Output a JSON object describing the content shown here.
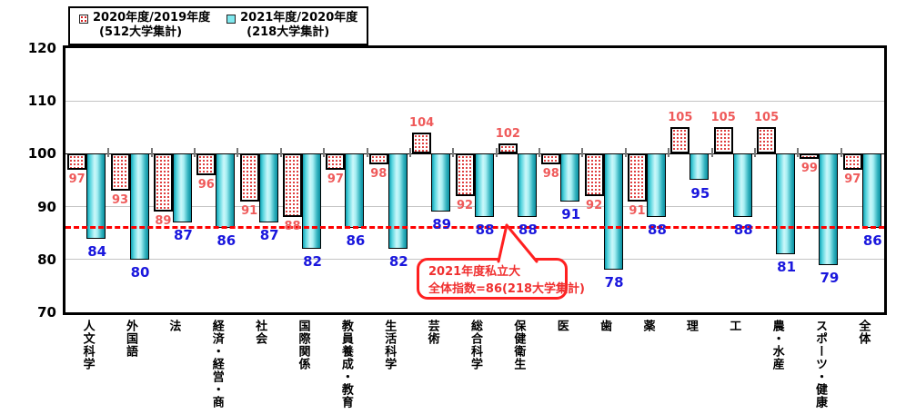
{
  "legend": {
    "series1_line1": "2020年度/2019年度",
    "series1_line2": "(512大学集計)",
    "series2_line1": "2021年度/2020年度",
    "series2_line2": "(218大学集計)"
  },
  "annotation": {
    "line1": "2021年度私立大",
    "line2": "全体指数=86(218大学集計)"
  },
  "colors": {
    "reference_line": "#ff0000",
    "series1_label": "#ef5a5a",
    "series2_label": "#1a17dd",
    "series1_fill": "white with red dot pattern",
    "series2_fill": "cyan gradient cylinder",
    "annotation": "#f03030",
    "grid": "#c4c4c4"
  },
  "chart_data": {
    "type": "bar",
    "title": "",
    "xlabel": "",
    "ylabel": "",
    "ylim": [
      70,
      120
    ],
    "yticks": [
      120,
      110,
      100,
      90,
      80,
      70
    ],
    "baseline": 100,
    "grid": true,
    "legend_position": "top-left",
    "reference_line": {
      "value": 86,
      "style": "dashed",
      "color": "#ff0000"
    },
    "categories": [
      "人文科学",
      "外国語",
      "法",
      "経済・経営・商",
      "社会",
      "国際関係",
      "教員養成・教育",
      "生活科学",
      "芸術",
      "総合科学",
      "保健衛生",
      "医",
      "歯",
      "薬",
      "理",
      "工",
      "農・水産",
      "スポーツ・健康",
      "全体"
    ],
    "series": [
      {
        "name": "2020年度/2019年度（512大学集計）",
        "values": [
          97,
          93,
          89,
          96,
          91,
          88,
          97,
          98,
          104,
          92,
          102,
          98,
          92,
          91,
          105,
          105,
          105,
          99,
          97
        ]
      },
      {
        "name": "2021年度/2020年度（218大学集計）",
        "values": [
          84,
          80,
          87,
          86,
          87,
          82,
          86,
          82,
          89,
          88,
          88,
          91,
          78,
          88,
          95,
          88,
          81,
          79,
          86
        ]
      }
    ]
  }
}
